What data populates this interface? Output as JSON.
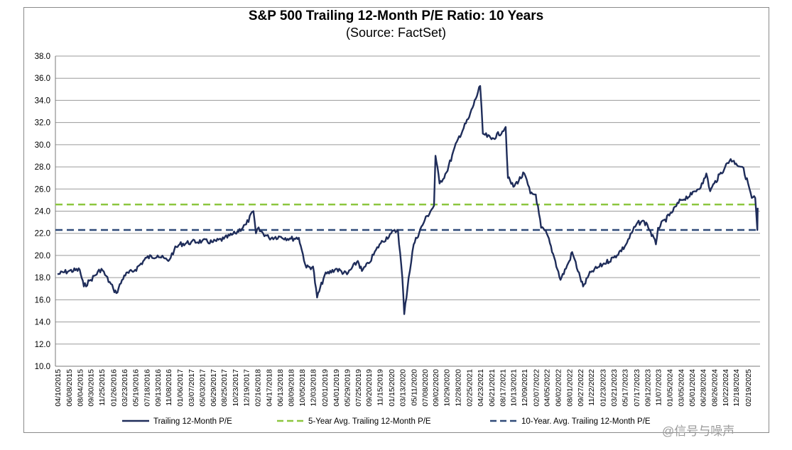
{
  "chart_data": {
    "type": "line",
    "title": "S&P 500 Trailing 12-Month P/E Ratio: 10 Years",
    "subtitle": "(Source: FactSet)",
    "ylim": [
      10.0,
      38.0
    ],
    "yticks": [
      "10.0",
      "12.0",
      "14.0",
      "16.0",
      "18.0",
      "20.0",
      "22.0",
      "24.0",
      "26.0",
      "28.0",
      "30.0",
      "32.0",
      "34.0",
      "36.0",
      "38.0"
    ],
    "grid": true,
    "legend_position": "bottom",
    "xticks": [
      "04/10/2015",
      "06/08/2015",
      "08/04/2015",
      "09/30/2015",
      "11/25/2015",
      "01/26/2016",
      "03/23/2016",
      "05/19/2016",
      "07/18/2016",
      "09/13/2016",
      "11/08/2016",
      "01/06/2017",
      "03/07/2017",
      "05/03/2017",
      "06/29/2017",
      "08/25/2017",
      "10/23/2017",
      "12/19/2017",
      "02/16/2018",
      "04/17/2018",
      "06/13/2018",
      "08/09/2018",
      "10/05/2018",
      "12/03/2018",
      "02/01/2019",
      "04/01/2019",
      "05/29/2019",
      "07/25/2019",
      "09/20/2019",
      "11/15/2019",
      "01/15/2020",
      "03/13/2020",
      "05/11/2020",
      "07/08/2020",
      "09/02/2020",
      "10/29/2020",
      "12/28/2020",
      "02/25/2021",
      "04/23/2021",
      "06/21/2021",
      "08/17/2021",
      "10/13/2021",
      "12/09/2021",
      "02/07/2022",
      "04/05/2022",
      "06/02/2022",
      "08/01/2022",
      "09/27/2022",
      "11/22/2022",
      "01/23/2023",
      "03/21/2023",
      "05/17/2023",
      "07/17/2023",
      "09/12/2023",
      "11/07/2023",
      "01/05/2024",
      "03/05/2024",
      "05/01/2024",
      "06/28/2024",
      "08/26/2024",
      "10/22/2024",
      "12/18/2024",
      "02/19/2025"
    ],
    "series": [
      {
        "name": "Trailing 12-Month P/E",
        "color": "#1f2d5a",
        "style": "solid",
        "points": [
          [
            "04/10/2015",
            18.3
          ],
          [
            "06/08/2015",
            18.6
          ],
          [
            "08/04/2015",
            18.7
          ],
          [
            "08/25/2015",
            17.2
          ],
          [
            "09/30/2015",
            17.8
          ],
          [
            "11/25/2015",
            18.8
          ],
          [
            "01/26/2016",
            17.0
          ],
          [
            "02/11/2016",
            16.6
          ],
          [
            "03/23/2016",
            18.2
          ],
          [
            "05/19/2016",
            18.7
          ],
          [
            "07/18/2016",
            19.8
          ],
          [
            "09/13/2016",
            20.0
          ],
          [
            "11/08/2016",
            19.5
          ],
          [
            "12/09/2016",
            20.5
          ],
          [
            "01/06/2017",
            21.0
          ],
          [
            "03/07/2017",
            21.2
          ],
          [
            "05/03/2017",
            21.3
          ],
          [
            "06/29/2017",
            21.2
          ],
          [
            "08/25/2017",
            21.5
          ],
          [
            "10/23/2017",
            22.0
          ],
          [
            "12/19/2017",
            22.8
          ],
          [
            "01/26/2018",
            24.0
          ],
          [
            "02/08/2018",
            22.0
          ],
          [
            "02/16/2018",
            22.4
          ],
          [
            "04/17/2018",
            21.6
          ],
          [
            "06/13/2018",
            21.7
          ],
          [
            "08/09/2018",
            21.5
          ],
          [
            "09/20/2018",
            21.6
          ],
          [
            "10/05/2018",
            20.5
          ],
          [
            "10/29/2018",
            18.9
          ],
          [
            "12/03/2018",
            19.0
          ],
          [
            "12/24/2018",
            16.2
          ],
          [
            "02/01/2019",
            18.2
          ],
          [
            "04/01/2019",
            18.8
          ],
          [
            "05/29/2019",
            18.3
          ],
          [
            "07/25/2019",
            19.5
          ],
          [
            "08/15/2019",
            18.6
          ],
          [
            "09/20/2019",
            19.3
          ],
          [
            "11/15/2019",
            21.0
          ],
          [
            "01/15/2020",
            22.0
          ],
          [
            "02/19/2020",
            22.3
          ],
          [
            "03/13/2020",
            18.0
          ],
          [
            "03/23/2020",
            14.7
          ],
          [
            "04/15/2020",
            18.0
          ],
          [
            "05/11/2020",
            21.0
          ],
          [
            "07/08/2020",
            23.2
          ],
          [
            "08/25/2020",
            24.5
          ],
          [
            "09/02/2020",
            29.0
          ],
          [
            "09/23/2020",
            26.5
          ],
          [
            "10/29/2020",
            27.5
          ],
          [
            "12/28/2020",
            30.5
          ],
          [
            "02/25/2021",
            32.5
          ],
          [
            "04/23/2021",
            35.3
          ],
          [
            "05/07/2021",
            31.0
          ],
          [
            "06/21/2021",
            30.5
          ],
          [
            "08/17/2021",
            31.2
          ],
          [
            "09/03/2021",
            31.6
          ],
          [
            "09/15/2021",
            27.0
          ],
          [
            "10/13/2021",
            26.2
          ],
          [
            "12/09/2021",
            27.4
          ],
          [
            "01/10/2022",
            25.6
          ],
          [
            "02/07/2022",
            25.5
          ],
          [
            "03/07/2022",
            22.5
          ],
          [
            "04/05/2022",
            22.0
          ],
          [
            "05/20/2022",
            19.5
          ],
          [
            "06/16/2022",
            17.8
          ],
          [
            "08/01/2022",
            19.5
          ],
          [
            "08/16/2022",
            20.3
          ],
          [
            "09/27/2022",
            18.0
          ],
          [
            "10/12/2022",
            17.2
          ],
          [
            "11/22/2022",
            18.5
          ],
          [
            "01/23/2023",
            19.2
          ],
          [
            "03/21/2023",
            19.8
          ],
          [
            "05/17/2023",
            20.8
          ],
          [
            "07/17/2023",
            22.8
          ],
          [
            "08/15/2023",
            23.1
          ],
          [
            "09/12/2023",
            22.8
          ],
          [
            "10/27/2023",
            21.0
          ],
          [
            "11/07/2023",
            22.5
          ],
          [
            "01/05/2024",
            23.6
          ],
          [
            "03/05/2024",
            25.0
          ],
          [
            "05/01/2024",
            25.5
          ],
          [
            "06/28/2024",
            26.5
          ],
          [
            "07/16/2024",
            27.4
          ],
          [
            "08/05/2024",
            25.8
          ],
          [
            "08/26/2024",
            26.5
          ],
          [
            "10/22/2024",
            28.0
          ],
          [
            "11/20/2024",
            28.7
          ],
          [
            "12/18/2024",
            28.3
          ],
          [
            "01/20/2025",
            28.0
          ],
          [
            "02/19/2025",
            26.5
          ],
          [
            "03/10/2025",
            25.2
          ],
          [
            "03/28/2025",
            25.2
          ],
          [
            "04/08/2025",
            22.3
          ],
          [
            "04/10/2025",
            24.3
          ]
        ]
      },
      {
        "name": "5-Year Avg. Trailing 12-Month P/E",
        "color": "#8cc63f",
        "style": "dashed",
        "value": 24.6
      },
      {
        "name": "10-Year. Avg. Trailing 12-Month P/E",
        "color": "#2f4a78",
        "style": "dashed",
        "value": 22.3
      }
    ]
  },
  "watermark": "@信号与噪声"
}
